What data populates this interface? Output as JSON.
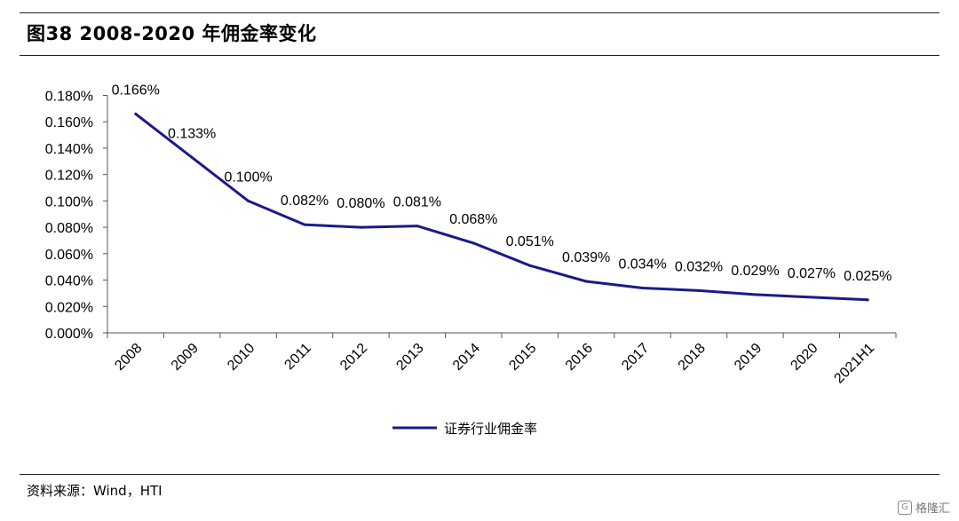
{
  "header": {
    "title": "图38 2008-2020 年佣金率变化"
  },
  "footer": {
    "source": "资料来源：Wind，HTI"
  },
  "watermark": {
    "text": "格隆汇",
    "icon": "G"
  },
  "chart_data": {
    "type": "line",
    "categories": [
      "2008",
      "2009",
      "2010",
      "2011",
      "2012",
      "2013",
      "2014",
      "2015",
      "2016",
      "2017",
      "2018",
      "2019",
      "2020",
      "2021H1"
    ],
    "series": [
      {
        "name": "证券行业佣金率",
        "values": [
          0.166,
          0.133,
          0.1,
          0.082,
          0.08,
          0.081,
          0.068,
          0.051,
          0.039,
          0.034,
          0.032,
          0.029,
          0.027,
          0.025
        ],
        "labels": [
          "0.166%",
          "0.133%",
          "0.100%",
          "0.082%",
          "0.080%",
          "0.081%",
          "0.068%",
          "0.051%",
          "0.039%",
          "0.034%",
          "0.032%",
          "0.029%",
          "0.027%",
          "0.025%"
        ],
        "color": "#1a1a8c"
      }
    ],
    "y_ticks": [
      "0.000%",
      "0.020%",
      "0.040%",
      "0.060%",
      "0.080%",
      "0.100%",
      "0.120%",
      "0.140%",
      "0.160%",
      "0.180%"
    ],
    "ylim": [
      0,
      0.18
    ],
    "xlabel": "",
    "ylabel": "",
    "grid": false,
    "legend_position": "bottom-center"
  }
}
